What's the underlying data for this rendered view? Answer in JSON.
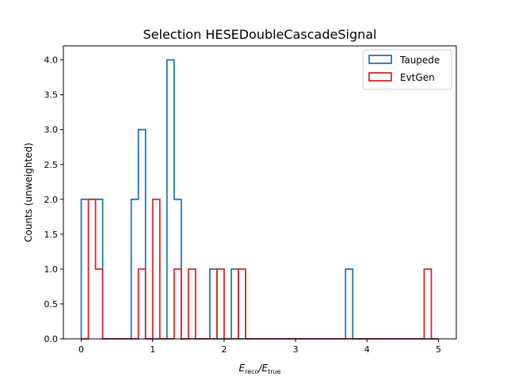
{
  "chart_data": {
    "type": "histogram",
    "title": "Selection HESEDoubleCascadeSignal",
    "xlabel": {
      "main": "E",
      "sub1": "reco",
      "slash": "/E",
      "sub2": "true"
    },
    "ylabel": "Counts (unweighted)",
    "xlim": [
      -0.25,
      5.25
    ],
    "ylim": [
      0,
      4.2
    ],
    "xticks": [
      0,
      1,
      2,
      3,
      4,
      5
    ],
    "yticks": [
      0.0,
      0.5,
      1.0,
      1.5,
      2.0,
      2.5,
      3.0,
      3.5,
      4.0
    ],
    "grid": false,
    "legend_position": "top-right",
    "bin_edges": [
      0.0,
      0.1,
      0.2,
      0.3,
      0.4,
      0.5,
      0.6,
      0.7,
      0.8,
      0.9,
      1.0,
      1.1,
      1.2,
      1.3,
      1.4,
      1.5,
      1.6,
      1.7,
      1.8,
      1.9,
      2.0,
      2.1,
      2.2,
      2.3,
      2.4,
      2.5,
      2.6,
      2.7,
      2.8,
      2.9,
      3.0,
      3.1,
      3.2,
      3.3,
      3.4,
      3.5,
      3.6,
      3.7,
      3.8,
      3.9,
      4.0,
      4.1,
      4.2,
      4.3,
      4.4,
      4.5,
      4.6,
      4.7,
      4.8,
      4.9,
      5.0
    ],
    "series": [
      {
        "name": "Taupede",
        "color": "#1f77b4",
        "counts": [
          2,
          2,
          2,
          0,
          0,
          0,
          0,
          2,
          3,
          0,
          0,
          0,
          4,
          2,
          0,
          0,
          0,
          0,
          1,
          0,
          0,
          1,
          0,
          0,
          0,
          0,
          0,
          0,
          0,
          0,
          0,
          0,
          0,
          0,
          0,
          0,
          0,
          1,
          0,
          0,
          0,
          0,
          0,
          0,
          0,
          0,
          0,
          0,
          0,
          0
        ]
      },
      {
        "name": "EvtGen",
        "color": "#d62728",
        "counts": [
          0,
          2,
          1,
          0,
          0,
          0,
          0,
          0,
          1,
          0,
          2,
          0,
          0,
          1,
          0,
          1,
          0,
          0,
          0,
          1,
          0,
          0,
          1,
          0,
          0,
          0,
          0,
          0,
          0,
          0,
          0,
          0,
          0,
          0,
          0,
          0,
          0,
          0,
          0,
          0,
          0,
          0,
          0,
          0,
          0,
          0,
          0,
          0,
          1,
          0
        ]
      }
    ]
  }
}
